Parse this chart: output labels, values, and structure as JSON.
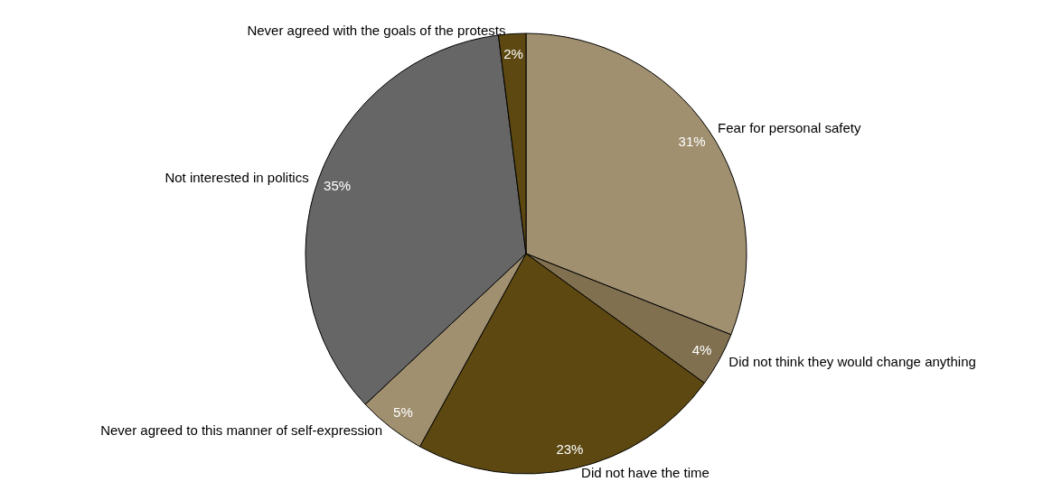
{
  "chart_data": {
    "type": "pie",
    "categories": [
      "Fear for personal safety",
      "Did not think they would change anything",
      "Did not have the time",
      "Never agreed to this manner of self-expression",
      "Not interested in politics",
      "Never agreed with the goals of the protests"
    ],
    "values": [
      31,
      4,
      23,
      5,
      35,
      2
    ],
    "value_labels": [
      "31%",
      "4%",
      "23%",
      "5%",
      "35%",
      "2%"
    ],
    "colors": [
      "#a09070",
      "#807050",
      "#5c4810",
      "#a09070",
      "#666666",
      "#5c4810"
    ],
    "legend": false
  }
}
